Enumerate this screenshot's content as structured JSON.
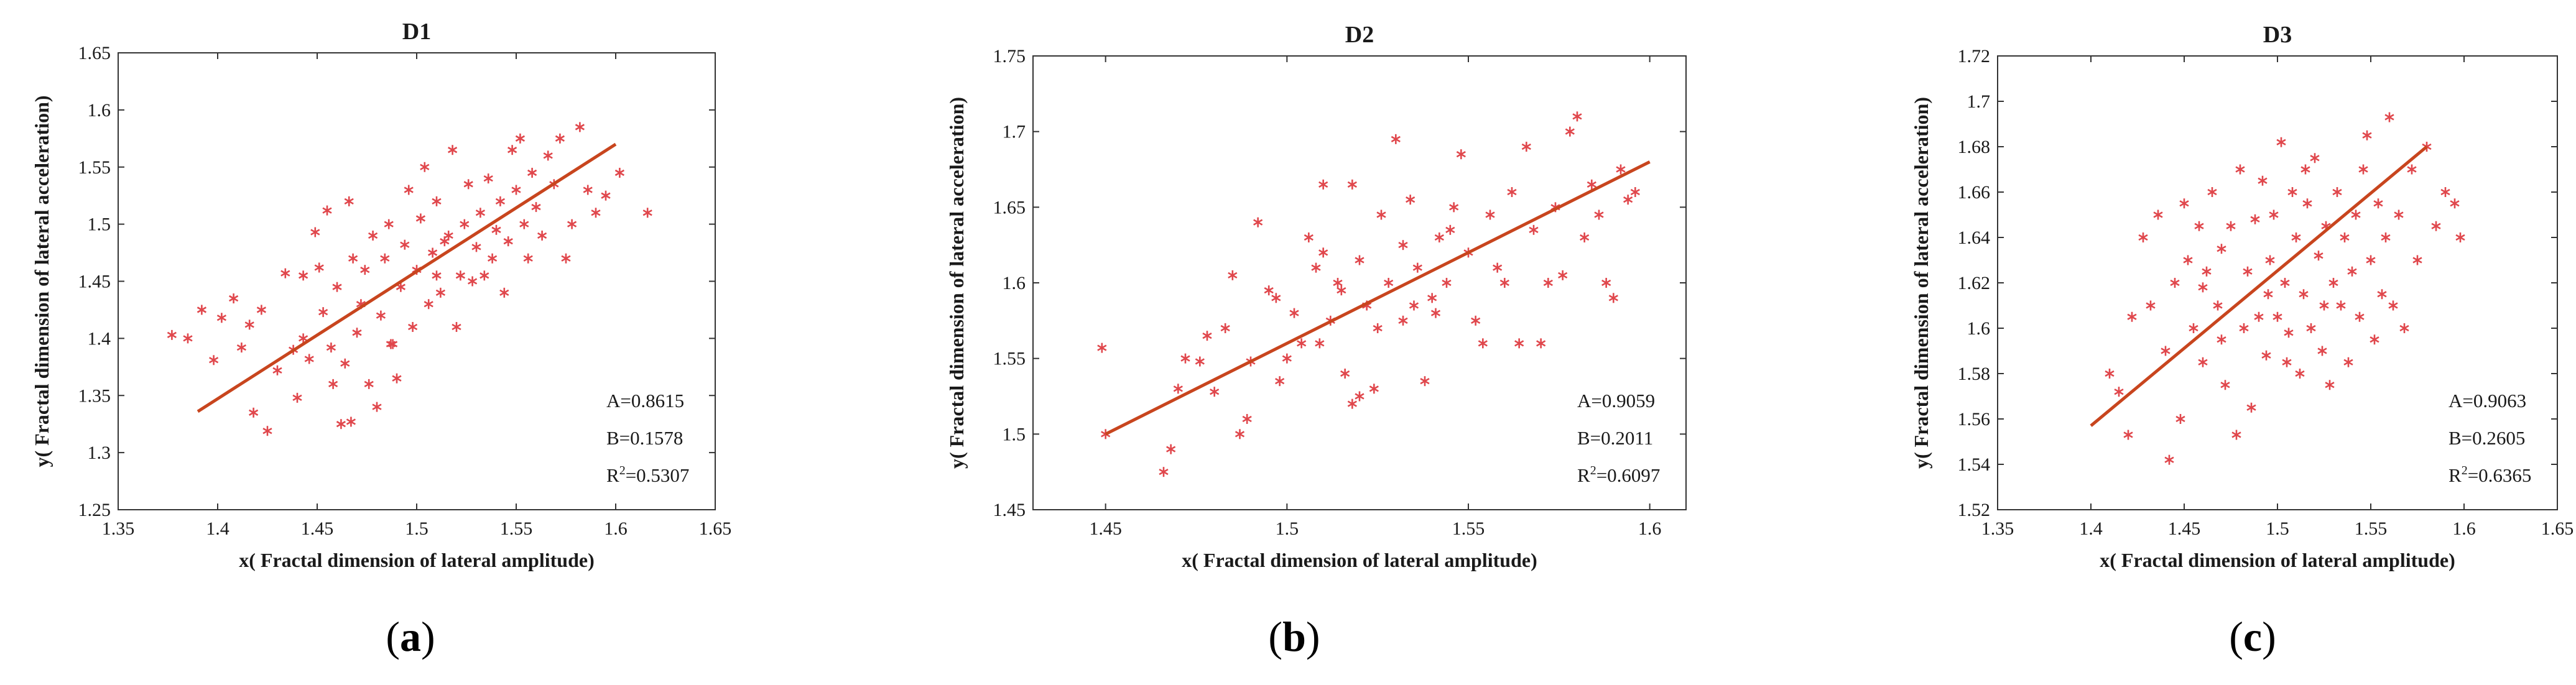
{
  "chart_data": [
    {
      "type": "scatter",
      "title": "D1",
      "xlabel": "x( Fractal dimension of lateral  amplitude)",
      "ylabel": "y( Fractal dimension of lateral  acceleration)",
      "xlim": [
        1.35,
        1.65
      ],
      "ylim": [
        1.25,
        1.65
      ],
      "xticks": [
        "1.35",
        "1.4",
        "1.45",
        "1.5",
        "1.55",
        "1.6",
        "1.65"
      ],
      "yticks": [
        "1.25",
        "1.3",
        "1.35",
        "1.4",
        "1.45",
        "1.5",
        "1.55",
        "1.6",
        "1.65"
      ],
      "marker_color": "#e0474c",
      "fit_color": "#c8451e",
      "fit_line": {
        "x": [
          1.39,
          1.6
        ],
        "y": [
          1.336,
          1.57
        ]
      },
      "annotations": {
        "a": "A=0.8615",
        "b": "B=0.1578",
        "r2_prefix": "R",
        "r2_sup": "2",
        "r2_value": "=0.5307"
      },
      "points": [
        [
          1.377,
          1.403
        ],
        [
          1.385,
          1.4
        ],
        [
          1.392,
          1.425
        ],
        [
          1.398,
          1.381
        ],
        [
          1.402,
          1.418
        ],
        [
          1.408,
          1.435
        ],
        [
          1.412,
          1.392
        ],
        [
          1.416,
          1.412
        ],
        [
          1.418,
          1.335
        ],
        [
          1.422,
          1.425
        ],
        [
          1.425,
          1.319
        ],
        [
          1.43,
          1.372
        ],
        [
          1.434,
          1.457
        ],
        [
          1.438,
          1.39
        ],
        [
          1.44,
          1.348
        ],
        [
          1.443,
          1.4
        ],
        [
          1.446,
          1.382
        ],
        [
          1.449,
          1.493
        ],
        [
          1.451,
          1.462
        ],
        [
          1.453,
          1.423
        ],
        [
          1.455,
          1.512
        ],
        [
          1.457,
          1.392
        ],
        [
          1.46,
          1.445
        ],
        [
          1.462,
          1.325
        ],
        [
          1.464,
          1.378
        ],
        [
          1.466,
          1.52
        ],
        [
          1.468,
          1.47
        ],
        [
          1.47,
          1.405
        ],
        [
          1.472,
          1.43
        ],
        [
          1.474,
          1.46
        ],
        [
          1.476,
          1.36
        ],
        [
          1.478,
          1.49
        ],
        [
          1.48,
          1.34
        ],
        [
          1.482,
          1.42
        ],
        [
          1.484,
          1.47
        ],
        [
          1.486,
          1.5
        ],
        [
          1.488,
          1.395
        ],
        [
          1.49,
          1.365
        ],
        [
          1.492,
          1.445
        ],
        [
          1.494,
          1.482
        ],
        [
          1.496,
          1.53
        ],
        [
          1.498,
          1.41
        ],
        [
          1.5,
          1.46
        ],
        [
          1.502,
          1.505
        ],
        [
          1.504,
          1.55
        ],
        [
          1.506,
          1.43
        ],
        [
          1.508,
          1.475
        ],
        [
          1.51,
          1.52
        ],
        [
          1.512,
          1.44
        ],
        [
          1.514,
          1.485
        ],
        [
          1.516,
          1.49
        ],
        [
          1.518,
          1.565
        ],
        [
          1.52,
          1.41
        ],
        [
          1.522,
          1.455
        ],
        [
          1.524,
          1.5
        ],
        [
          1.526,
          1.535
        ],
        [
          1.528,
          1.45
        ],
        [
          1.53,
          1.48
        ],
        [
          1.532,
          1.51
        ],
        [
          1.534,
          1.455
        ],
        [
          1.536,
          1.54
        ],
        [
          1.538,
          1.47
        ],
        [
          1.54,
          1.495
        ],
        [
          1.542,
          1.52
        ],
        [
          1.544,
          1.44
        ],
        [
          1.546,
          1.485
        ],
        [
          1.548,
          1.565
        ],
        [
          1.55,
          1.53
        ],
        [
          1.552,
          1.575
        ],
        [
          1.554,
          1.5
        ],
        [
          1.556,
          1.47
        ],
        [
          1.558,
          1.545
        ],
        [
          1.56,
          1.515
        ],
        [
          1.563,
          1.49
        ],
        [
          1.566,
          1.56
        ],
        [
          1.569,
          1.535
        ],
        [
          1.572,
          1.575
        ],
        [
          1.575,
          1.47
        ],
        [
          1.578,
          1.5
        ],
        [
          1.582,
          1.585
        ],
        [
          1.586,
          1.53
        ],
        [
          1.59,
          1.51
        ],
        [
          1.595,
          1.525
        ],
        [
          1.602,
          1.545
        ],
        [
          1.616,
          1.51
        ],
        [
          1.467,
          1.327
        ],
        [
          1.458,
          1.36
        ],
        [
          1.443,
          1.455
        ],
        [
          1.487,
          1.395
        ],
        [
          1.51,
          1.455
        ]
      ]
    },
    {
      "type": "scatter",
      "title": "D2",
      "xlabel": "x( Fractal dimension of lateral  amplitude)",
      "ylabel": "y( Fractal dimension of lateral  acceleration)",
      "xlim": [
        1.43,
        1.61
      ],
      "ylim": [
        1.45,
        1.75
      ],
      "xticks": [
        "1.45",
        "1.5",
        "1.55",
        "1.6"
      ],
      "xtick_values": [
        1.45,
        1.5,
        1.55,
        1.6
      ],
      "yticks": [
        "1.45",
        "1.5",
        "1.55",
        "1.6",
        "1.65",
        "1.7",
        "1.75"
      ],
      "marker_color": "#e0474c",
      "fit_color": "#c8451e",
      "fit_line": {
        "x": [
          1.45,
          1.6
        ],
        "y": [
          1.5,
          1.68
        ]
      },
      "annotations": {
        "a": "A=0.9059",
        "b": "B=0.2011",
        "r2_prefix": "R",
        "r2_sup": "2",
        "r2_value": "=0.6097"
      },
      "points": [
        [
          1.449,
          1.557
        ],
        [
          1.45,
          1.5
        ],
        [
          1.466,
          1.475
        ],
        [
          1.468,
          1.49
        ],
        [
          1.47,
          1.53
        ],
        [
          1.472,
          1.55
        ],
        [
          1.476,
          1.548
        ],
        [
          1.478,
          1.565
        ],
        [
          1.48,
          1.528
        ],
        [
          1.483,
          1.57
        ],
        [
          1.485,
          1.605
        ],
        [
          1.487,
          1.5
        ],
        [
          1.489,
          1.51
        ],
        [
          1.49,
          1.548
        ],
        [
          1.492,
          1.64
        ],
        [
          1.495,
          1.595
        ],
        [
          1.497,
          1.59
        ],
        [
          1.5,
          1.55
        ],
        [
          1.502,
          1.58
        ],
        [
          1.504,
          1.56
        ],
        [
          1.506,
          1.63
        ],
        [
          1.508,
          1.61
        ],
        [
          1.51,
          1.665
        ],
        [
          1.512,
          1.575
        ],
        [
          1.514,
          1.6
        ],
        [
          1.516,
          1.54
        ],
        [
          1.518,
          1.52
        ],
        [
          1.52,
          1.615
        ],
        [
          1.522,
          1.585
        ],
        [
          1.524,
          1.53
        ],
        [
          1.526,
          1.645
        ],
        [
          1.528,
          1.6
        ],
        [
          1.53,
          1.695
        ],
        [
          1.532,
          1.575
        ],
        [
          1.534,
          1.655
        ],
        [
          1.536,
          1.61
        ],
        [
          1.538,
          1.535
        ],
        [
          1.54,
          1.59
        ],
        [
          1.542,
          1.63
        ],
        [
          1.544,
          1.6
        ],
        [
          1.546,
          1.65
        ],
        [
          1.548,
          1.685
        ],
        [
          1.55,
          1.62
        ],
        [
          1.552,
          1.575
        ],
        [
          1.554,
          1.56
        ],
        [
          1.556,
          1.645
        ],
        [
          1.558,
          1.61
        ],
        [
          1.56,
          1.6
        ],
        [
          1.562,
          1.66
        ],
        [
          1.564,
          1.56
        ],
        [
          1.566,
          1.69
        ],
        [
          1.568,
          1.635
        ],
        [
          1.57,
          1.56
        ],
        [
          1.572,
          1.6
        ],
        [
          1.574,
          1.65
        ],
        [
          1.576,
          1.605
        ],
        [
          1.578,
          1.7
        ],
        [
          1.58,
          1.71
        ],
        [
          1.582,
          1.63
        ],
        [
          1.584,
          1.665
        ],
        [
          1.586,
          1.645
        ],
        [
          1.588,
          1.6
        ],
        [
          1.59,
          1.59
        ],
        [
          1.592,
          1.675
        ],
        [
          1.594,
          1.655
        ],
        [
          1.596,
          1.66
        ],
        [
          1.518,
          1.665
        ],
        [
          1.525,
          1.57
        ],
        [
          1.515,
          1.595
        ],
        [
          1.532,
          1.625
        ],
        [
          1.541,
          1.58
        ],
        [
          1.509,
          1.56
        ],
        [
          1.52,
          1.525
        ],
        [
          1.498,
          1.535
        ],
        [
          1.535,
          1.585
        ],
        [
          1.545,
          1.635
        ],
        [
          1.51,
          1.62
        ]
      ]
    },
    {
      "type": "scatter",
      "title": "D3",
      "xlabel": "x( Fractal dimension of lateral amplitude)",
      "ylabel": "y( Fractal dimension of lateral  acceleration)",
      "xlim": [
        1.35,
        1.65
      ],
      "ylim": [
        1.52,
        1.72
      ],
      "xticks": [
        "1.35",
        "1.4",
        "1.45",
        "1.5",
        "1.55",
        "1.6",
        "1.65"
      ],
      "yticks": [
        "1.52",
        "1.54",
        "1.56",
        "1.58",
        "1.6",
        "1.62",
        "1.64",
        "1.66",
        "1.68",
        "1.7",
        "1.72"
      ],
      "marker_color": "#e0474c",
      "fit_color": "#c8451e",
      "fit_line": {
        "x": [
          1.4,
          1.58
        ],
        "y": [
          1.557,
          1.68
        ]
      },
      "annotations": {
        "a": "A=0.9063",
        "b": "B=0.2605",
        "r2_prefix": "R",
        "r2_sup": "2",
        "r2_value": "=0.6365"
      },
      "points": [
        [
          1.41,
          1.58
        ],
        [
          1.415,
          1.572
        ],
        [
          1.42,
          1.553
        ],
        [
          1.422,
          1.605
        ],
        [
          1.428,
          1.64
        ],
        [
          1.432,
          1.61
        ],
        [
          1.436,
          1.65
        ],
        [
          1.44,
          1.59
        ],
        [
          1.442,
          1.542
        ],
        [
          1.445,
          1.62
        ],
        [
          1.448,
          1.56
        ],
        [
          1.45,
          1.655
        ],
        [
          1.452,
          1.63
        ],
        [
          1.455,
          1.6
        ],
        [
          1.458,
          1.645
        ],
        [
          1.46,
          1.585
        ],
        [
          1.462,
          1.625
        ],
        [
          1.465,
          1.66
        ],
        [
          1.468,
          1.61
        ],
        [
          1.47,
          1.635
        ],
        [
          1.472,
          1.575
        ],
        [
          1.475,
          1.645
        ],
        [
          1.478,
          1.553
        ],
        [
          1.48,
          1.67
        ],
        [
          1.482,
          1.6
        ],
        [
          1.484,
          1.625
        ],
        [
          1.486,
          1.565
        ],
        [
          1.488,
          1.648
        ],
        [
          1.49,
          1.605
        ],
        [
          1.492,
          1.665
        ],
        [
          1.494,
          1.588
        ],
        [
          1.496,
          1.63
        ],
        [
          1.498,
          1.65
        ],
        [
          1.5,
          1.605
        ],
        [
          1.502,
          1.682
        ],
        [
          1.504,
          1.62
        ],
        [
          1.506,
          1.598
        ],
        [
          1.508,
          1.66
        ],
        [
          1.51,
          1.64
        ],
        [
          1.512,
          1.58
        ],
        [
          1.514,
          1.615
        ],
        [
          1.516,
          1.655
        ],
        [
          1.518,
          1.6
        ],
        [
          1.52,
          1.675
        ],
        [
          1.522,
          1.632
        ],
        [
          1.524,
          1.59
        ],
        [
          1.526,
          1.645
        ],
        [
          1.528,
          1.575
        ],
        [
          1.53,
          1.62
        ],
        [
          1.532,
          1.66
        ],
        [
          1.534,
          1.61
        ],
        [
          1.536,
          1.64
        ],
        [
          1.538,
          1.585
        ],
        [
          1.54,
          1.625
        ],
        [
          1.542,
          1.65
        ],
        [
          1.544,
          1.605
        ],
        [
          1.546,
          1.67
        ],
        [
          1.548,
          1.685
        ],
        [
          1.55,
          1.63
        ],
        [
          1.552,
          1.595
        ],
        [
          1.554,
          1.655
        ],
        [
          1.556,
          1.615
        ],
        [
          1.558,
          1.64
        ],
        [
          1.56,
          1.693
        ],
        [
          1.562,
          1.61
        ],
        [
          1.565,
          1.65
        ],
        [
          1.568,
          1.6
        ],
        [
          1.572,
          1.67
        ],
        [
          1.575,
          1.63
        ],
        [
          1.58,
          1.68
        ],
        [
          1.585,
          1.645
        ],
        [
          1.59,
          1.66
        ],
        [
          1.595,
          1.655
        ],
        [
          1.598,
          1.64
        ],
        [
          1.495,
          1.615
        ],
        [
          1.505,
          1.585
        ],
        [
          1.515,
          1.67
        ],
        [
          1.525,
          1.61
        ],
        [
          1.47,
          1.595
        ],
        [
          1.46,
          1.618
        ]
      ]
    }
  ],
  "captions": [
    {
      "open": "(",
      "letter": "a",
      "close": ")"
    },
    {
      "open": "(",
      "letter": "b",
      "close": ")"
    },
    {
      "open": "(",
      "letter": "c",
      "close": ")"
    }
  ]
}
